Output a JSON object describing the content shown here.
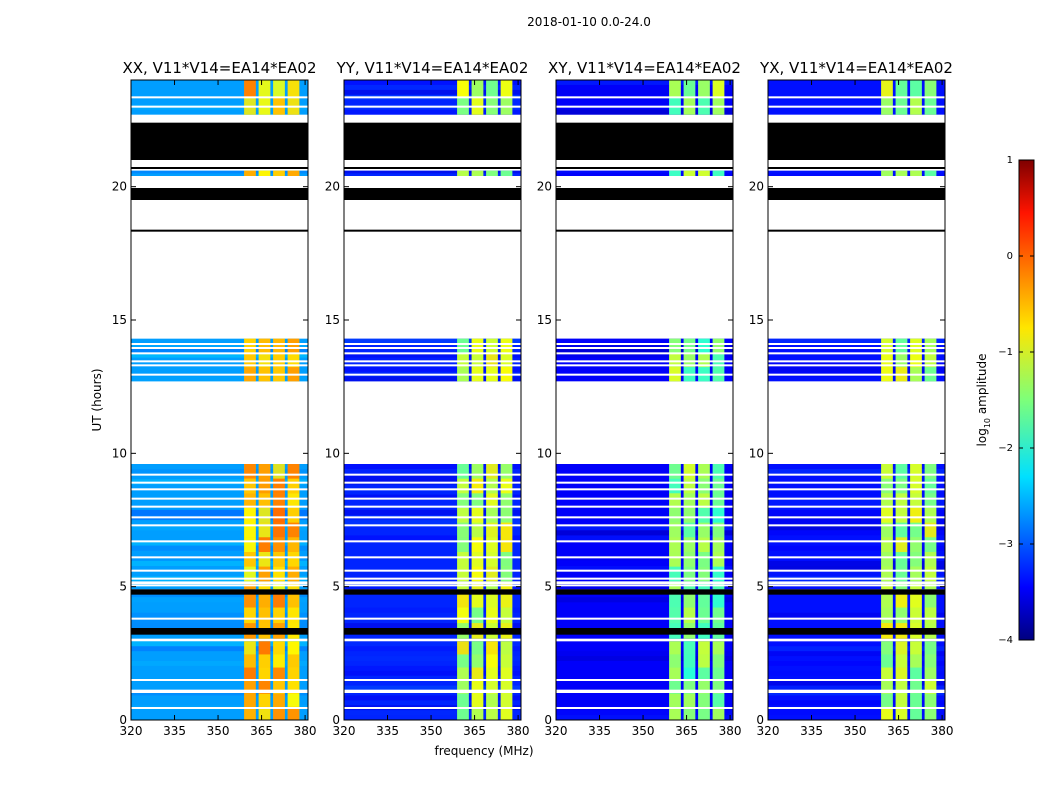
{
  "chart_data": {
    "type": "heatmap",
    "title": "2018-01-10 0.0-24.0",
    "xlabel": "frequency (MHz)",
    "ylabel": "UT (hours)",
    "xlim": [
      320,
      381
    ],
    "ylim": [
      0,
      24
    ],
    "xticks": [
      "320",
      "335",
      "350",
      "365",
      "380"
    ],
    "xtick_values": [
      320,
      335,
      350,
      365,
      380
    ],
    "yticks": [
      "0",
      "5",
      "10",
      "15",
      "20"
    ],
    "ytick_values": [
      0,
      5,
      10,
      15,
      20
    ],
    "panels": [
      {
        "name": "XX",
        "title": "XX, V11*V14=EA14*EA02",
        "base_level": 0.28,
        "band_level": 0.68
      },
      {
        "name": "YY",
        "title": "YY, V11*V14=EA14*EA02",
        "base_level": 0.16,
        "band_level": 0.56
      },
      {
        "name": "XY",
        "title": "XY, V11*V14=EA14*EA02",
        "base_level": 0.12,
        "band_level": 0.5
      },
      {
        "name": "YX",
        "title": "YX, V11*V14=EA14*EA02",
        "base_level": 0.14,
        "band_level": 0.55
      }
    ],
    "band_freq_ranges_mhz": [
      [
        359,
        363
      ],
      [
        364,
        368
      ],
      [
        369,
        373
      ],
      [
        374,
        378
      ]
    ],
    "data_blocks_hours": [
      [
        0,
        2.95
      ],
      [
        3.05,
        4.8
      ],
      [
        4.9,
        5.1
      ],
      [
        5.2,
        9.6
      ],
      [
        12.7,
        14.3
      ],
      [
        20.4,
        20.6
      ],
      [
        22.7,
        24.0
      ]
    ],
    "gap_hours": [
      [
        9.6,
        12.7
      ],
      [
        14.3,
        18.3
      ],
      [
        18.4,
        19.5
      ],
      [
        19.95,
        20.4
      ],
      [
        20.6,
        21.0
      ],
      [
        22.4,
        22.7
      ]
    ],
    "flag_hours": [
      [
        19.5,
        19.95
      ],
      [
        21.0,
        22.4
      ],
      [
        3.2,
        3.45
      ],
      [
        4.7,
        4.9
      ]
    ],
    "white_line_hours": [
      0.45,
      1.05,
      1.1,
      1.5,
      3.0,
      3.8,
      5.05,
      5.3,
      5.6,
      6.1,
      6.7,
      7.3,
      7.6,
      8.0,
      8.3,
      8.65,
      8.9,
      9.2,
      12.95,
      13.3,
      13.45,
      13.75,
      13.95,
      14.1,
      23.0,
      23.35
    ],
    "colorbar": {
      "label": "log10 amplitude",
      "label_text": "log",
      "label_sub": "10",
      "label_rest": " amplitude",
      "min": -4,
      "max": 1,
      "ticks": [
        "1",
        "0",
        "−1",
        "−2",
        "−3",
        "−4"
      ],
      "tick_values": [
        1,
        0,
        -1,
        -2,
        -3,
        -4
      ],
      "colormap": "jet"
    }
  }
}
